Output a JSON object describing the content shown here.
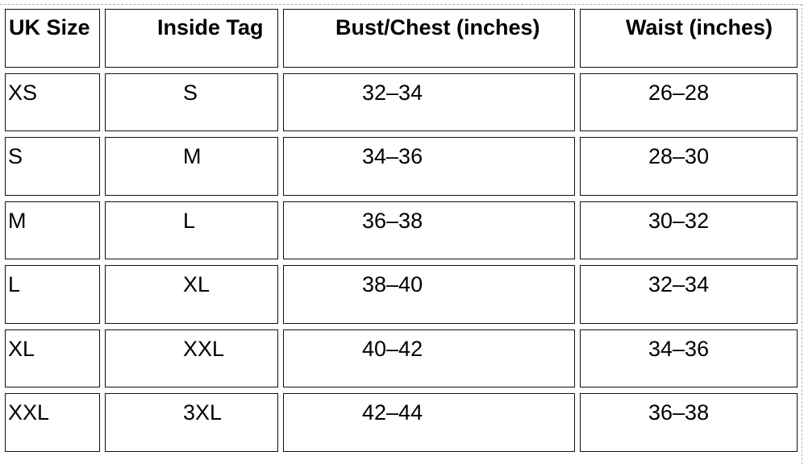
{
  "table": {
    "headers": [
      "UK Size",
      "Inside Tag",
      "Bust/Chest (inches)",
      "Waist (inches)"
    ],
    "rows": [
      [
        "XS",
        "S",
        "32–34",
        "26–28"
      ],
      [
        "S",
        "M",
        "34–36",
        "28–30"
      ],
      [
        "M",
        "L",
        "36–38",
        "30–32"
      ],
      [
        "L",
        "XL",
        "38–40",
        "32–34"
      ],
      [
        "XL",
        "XXL",
        "40–42",
        "34–36"
      ],
      [
        "XXL",
        "3XL",
        "42–44",
        "36–38"
      ]
    ]
  }
}
